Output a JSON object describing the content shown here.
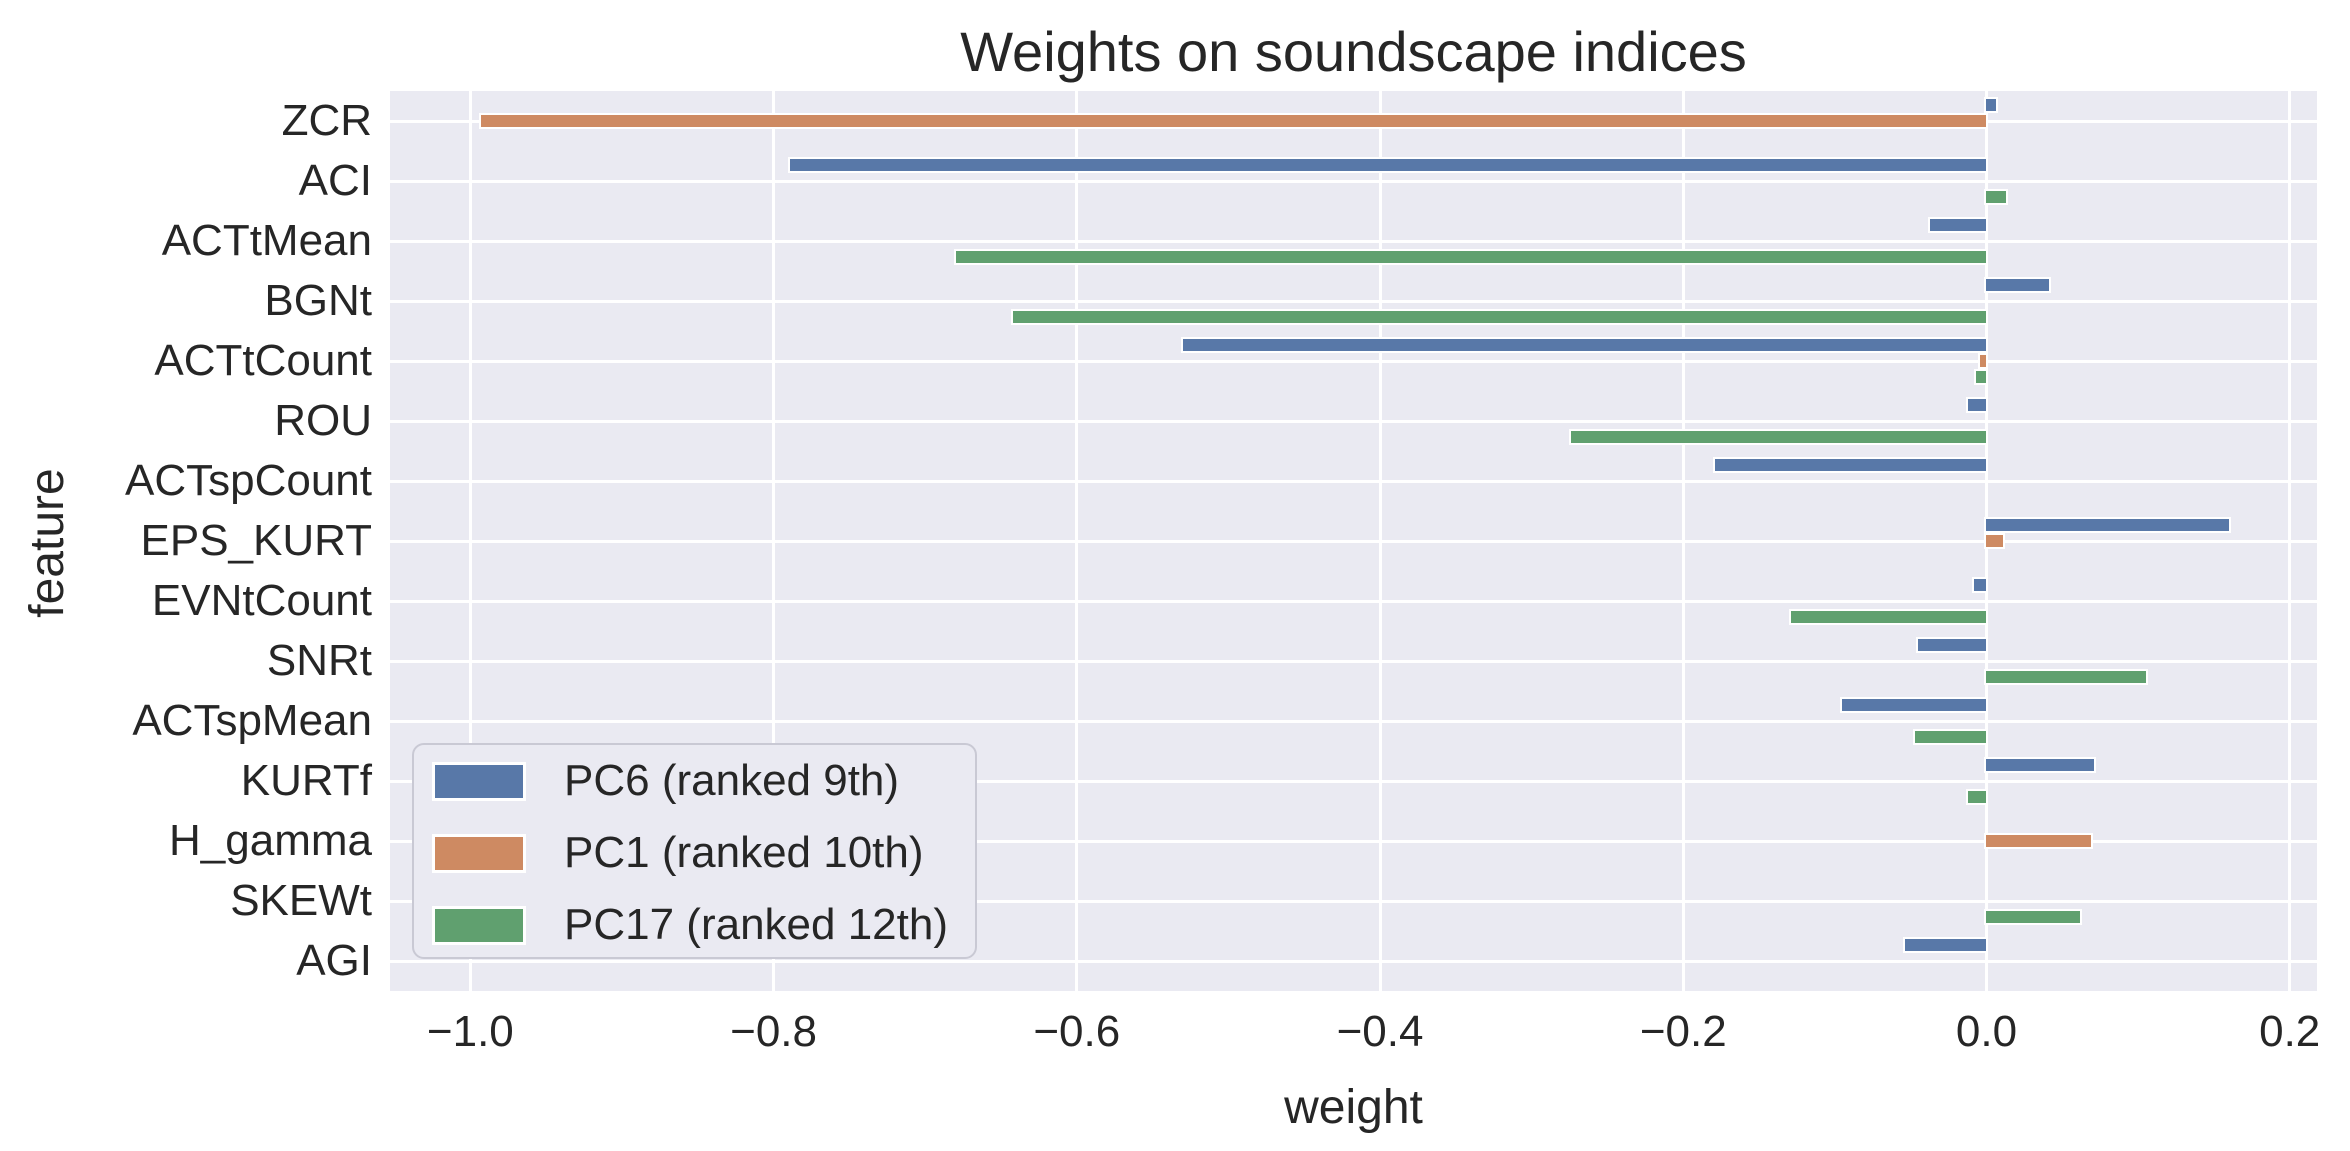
{
  "chart_data": {
    "type": "bar",
    "orientation": "horizontal",
    "title": "Weights on soundscape indices",
    "xlabel": "weight",
    "ylabel": "feature",
    "categories": [
      "ZCR",
      "ACI",
      "ACTtMean",
      "BGNt",
      "ACTtCount",
      "ROU",
      "ACTspCount",
      "EPS_KURT",
      "EVNtCount",
      "SNRt",
      "ACTspMean",
      "KURTf",
      "H_gamma",
      "SKEWt",
      "AGI"
    ],
    "series": [
      {
        "name": "PC6 (ranked 9th)",
        "color": "#5878A8",
        "values": [
          0.006,
          -0.789,
          -0.037,
          0.041,
          -0.53,
          -0.012,
          -0.179,
          0.16,
          -0.008,
          -0.045,
          -0.095,
          0.071,
          0,
          0,
          -0.054
        ]
      },
      {
        "name": "PC1 (ranked 10th)",
        "color": "#CE8A62",
        "values": [
          -0.993,
          0,
          0,
          0,
          -0.004,
          0,
          0,
          0.011,
          0,
          0,
          0,
          0,
          0.069,
          0,
          0
        ]
      },
      {
        "name": "PC17 (ranked 12th)",
        "color": "#60A06F",
        "values": [
          0,
          0.013,
          -0.68,
          -0.642,
          -0.007,
          -0.274,
          0,
          0,
          -0.129,
          0.105,
          -0.047,
          -0.012,
          0,
          0.062,
          0
        ]
      }
    ],
    "xticks": {
      "values": [
        -1.0,
        -0.8,
        -0.6,
        -0.4,
        -0.2,
        0.0,
        0.2
      ],
      "labels": [
        "−1.0",
        "−0.8",
        "−0.6",
        "−0.4",
        "−0.2",
        "0.0",
        "0.2"
      ]
    },
    "xlim": [
      -1.053,
      0.218
    ],
    "grid": true,
    "legend_position": "lower left",
    "plot_background": "#EAEAF2",
    "grid_color": "#FFFFFF",
    "text_color": "#262626"
  }
}
